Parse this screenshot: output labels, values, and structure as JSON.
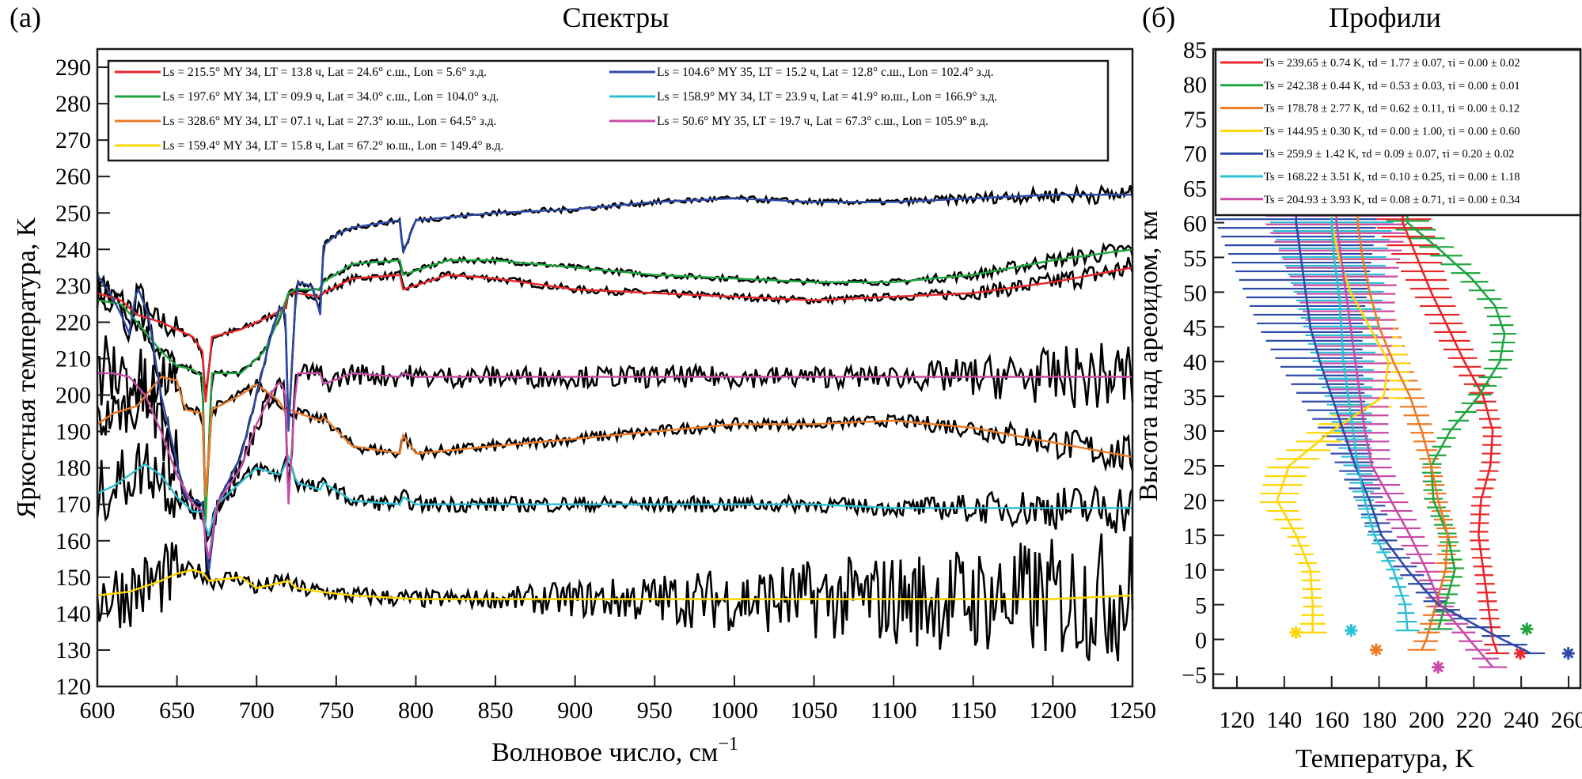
{
  "panels": {
    "a": {
      "letter": "(а)",
      "title": "Спектры"
    },
    "b": {
      "letter": "(б)",
      "title": "Профили"
    }
  },
  "chart_data": [
    {
      "id": "spectra",
      "type": "line",
      "title": "Спектры",
      "xlabel": "Волновое число, см",
      "xlabel_sup": "−1",
      "ylabel": "Яркостная температура, K",
      "xlim": [
        600,
        1250
      ],
      "ylim": [
        120,
        295
      ],
      "xticks": [
        600,
        650,
        700,
        750,
        800,
        850,
        900,
        950,
        1000,
        1050,
        1100,
        1150,
        1200,
        1250
      ],
      "yticks": [
        120,
        130,
        140,
        150,
        160,
        170,
        180,
        190,
        200,
        210,
        220,
        230,
        240,
        250,
        260,
        270,
        280,
        290
      ],
      "grid": false,
      "legend_position": "top",
      "observed_color": "#000000",
      "series": [
        {
          "name": "Ls = 215.5° MY 34, LT = 13.8 ч, Lat = 24.6° с.ш., Lon = 5.6° з.д.",
          "color": "#e8262a",
          "x": [
            600,
            615,
            625,
            640,
            650,
            660,
            666,
            668,
            672,
            690,
            710,
            718,
            720,
            725,
            740,
            742,
            760,
            790,
            792,
            820,
            850,
            900,
            950,
            1000,
            1050,
            1100,
            1150,
            1200,
            1250
          ],
          "y": [
            228,
            226,
            222,
            220,
            218,
            216,
            212,
            198,
            216,
            218,
            222,
            224,
            228,
            228,
            227,
            228,
            232,
            233,
            229,
            233,
            232,
            229,
            228,
            227,
            226,
            227,
            228,
            231,
            235
          ]
        },
        {
          "name": "Ls = 197.6° MY 34, LT = 09.9 ч, Lat = 34.0° с.ш., Lon = 104.0° з.д.",
          "color": "#1fa640",
          "x": [
            600,
            615,
            625,
            640,
            650,
            660,
            666,
            668,
            672,
            690,
            705,
            715,
            720,
            725,
            740,
            742,
            760,
            790,
            792,
            820,
            850,
            900,
            950,
            1000,
            1050,
            1100,
            1150,
            1200,
            1250
          ],
          "y": [
            226,
            225,
            220,
            212,
            208,
            207,
            205,
            165,
            206,
            206,
            212,
            222,
            228,
            229,
            229,
            231,
            236,
            237,
            233,
            237,
            237,
            235,
            233,
            232,
            231,
            231,
            233,
            237,
            240
          ]
        },
        {
          "name": "Ls = 328.6° MY 34, LT = 07.1 ч, Lat = 27.3° ю.ш., Lon = 64.5° з.д.",
          "color": "#ec7a25",
          "x": [
            600,
            610,
            625,
            640,
            650,
            655,
            666,
            668,
            672,
            690,
            700,
            715,
            718,
            720,
            740,
            742,
            760,
            790,
            792,
            800,
            850,
            900,
            950,
            1000,
            1050,
            1100,
            1150,
            1200,
            1250
          ],
          "y": [
            192,
            195,
            197,
            205,
            204,
            196,
            195,
            172,
            196,
            200,
            203,
            198,
            195,
            196,
            193,
            194,
            186,
            184,
            189,
            184,
            186,
            188,
            190,
            192,
            192,
            193,
            191,
            187,
            183
          ]
        },
        {
          "name": "Ls = 159.4° MY 34, LT = 15.8 ч, Lat = 67.2° ю.ш., Lon = 149.4° в.д.",
          "color": "#ffd600",
          "x": [
            600,
            620,
            640,
            650,
            660,
            667,
            670,
            690,
            700,
            720,
            725,
            740,
            760,
            800,
            850,
            900,
            950,
            1000,
            1050,
            1100,
            1150,
            1200,
            1250
          ],
          "y": [
            145,
            146,
            149,
            151,
            152,
            151,
            149,
            150,
            147,
            149,
            147,
            146,
            145,
            144,
            144,
            144,
            144,
            144,
            144,
            144,
            144,
            144,
            145
          ]
        },
        {
          "name": "Ls = 104.6° MY 35, LT = 15.2 ч, Lat = 12.8° с.ш., Lon = 102.4° з.д.",
          "color": "#2e4aa8",
          "x": [
            600,
            608,
            615,
            620,
            625,
            632,
            640,
            655,
            667,
            669,
            675,
            690,
            700,
            710,
            715,
            718,
            720,
            725,
            735,
            740,
            742,
            750,
            760,
            790,
            792,
            800,
            850,
            900,
            950,
            1000,
            1050,
            1100,
            1150,
            1200,
            1250
          ],
          "y": [
            233,
            228,
            222,
            217,
            230,
            222,
            200,
            172,
            170,
            148,
            170,
            183,
            200,
            218,
            225,
            222,
            190,
            231,
            230,
            222,
            241,
            244,
            246,
            248,
            239,
            248,
            250,
            251,
            253,
            254,
            253,
            253,
            254,
            255,
            255
          ]
        },
        {
          "name": "Ls = 158.9° MY 34, LT = 23.9 ч, Lat = 41.9° ю.ш., Lon = 166.9° з.д.",
          "color": "#2cc0d4",
          "x": [
            600,
            610,
            620,
            630,
            640,
            650,
            660,
            667,
            669,
            675,
            700,
            715,
            720,
            725,
            740,
            742,
            760,
            790,
            792,
            800,
            850,
            900,
            950,
            1000,
            1050,
            1100,
            1150,
            1200,
            1250
          ],
          "y": [
            173,
            175,
            178,
            181,
            178,
            172,
            168,
            168,
            160,
            170,
            180,
            178,
            183,
            176,
            174,
            176,
            171,
            170,
            172,
            170,
            170,
            170,
            170,
            170,
            170,
            169,
            169,
            169,
            169
          ]
        },
        {
          "name": "Ls = 50.6° MY 35, LT = 19.7 ч, Lat = 67.3° с.ш., Lon = 105.9° в.д.",
          "color": "#c94aa8",
          "x": [
            600,
            610,
            620,
            630,
            640,
            650,
            660,
            667,
            669,
            675,
            690,
            700,
            710,
            715,
            718,
            720,
            725,
            740,
            742,
            760,
            790,
            792,
            800,
            850,
            900,
            950,
            1000,
            1050,
            1100,
            1150,
            1200,
            1250
          ],
          "y": [
            206,
            206,
            205,
            200,
            190,
            178,
            170,
            168,
            152,
            170,
            180,
            192,
            201,
            204,
            200,
            170,
            206,
            206,
            203,
            206,
            205,
            206,
            205,
            205,
            205,
            205,
            205,
            205,
            205,
            205,
            205,
            205
          ]
        }
      ]
    },
    {
      "id": "profiles",
      "type": "line",
      "title": "Профили",
      "xlabel": "Температура, K",
      "ylabel": "Высота над ареоидом, км",
      "xlim": [
        110,
        265
      ],
      "ylim": [
        -7,
        85
      ],
      "xticks": [
        120,
        140,
        160,
        180,
        200,
        220,
        240,
        260
      ],
      "yticks": [
        -5,
        0,
        5,
        10,
        15,
        20,
        25,
        30,
        35,
        40,
        45,
        50,
        55,
        60,
        65,
        70,
        75,
        80,
        85
      ],
      "grid": false,
      "legend_position": "top",
      "error_bars": "horizontal",
      "surface_marker": "asterisk",
      "series": [
        {
          "name": "Ts = 239.65 ± 0.74 K, τd = 1.77 ± 0.07, τi = 0.00 ± 0.02",
          "color": "#e8262a",
          "Ts": 239.65,
          "surface_alt": -2,
          "alt": [
            -2,
            0,
            5,
            10,
            15,
            20,
            25,
            30,
            35,
            40,
            45,
            50,
            55,
            60
          ],
          "T": [
            230,
            228,
            226,
            224,
            222,
            223,
            227,
            228,
            224,
            216,
            209,
            202,
            196,
            190
          ],
          "err": [
            5,
            4,
            4,
            4,
            4,
            4,
            4,
            4,
            5,
            6,
            7,
            8,
            10,
            12
          ]
        },
        {
          "name": "Ts = 242.38 ± 0.44 K, τd = 0.53 ± 0.03, τi = 0.00 ± 0.01",
          "color": "#1fa640",
          "Ts": 242.38,
          "surface_alt": 1.5,
          "alt": [
            1.5,
            5,
            10,
            15,
            20,
            25,
            30,
            35,
            40,
            44,
            48,
            52,
            56,
            60
          ],
          "T": [
            205,
            208,
            212,
            209,
            203,
            202,
            210,
            222,
            231,
            233,
            229,
            219,
            206,
            192
          ],
          "err": [
            6,
            4,
            4,
            4,
            4,
            4,
            4,
            5,
            5,
            5,
            5,
            6,
            7,
            9
          ]
        },
        {
          "name": "Ts = 178.78 ± 2.77 K, τd = 0.62 ± 0.11, τi = 0.00 ± 0.12",
          "color": "#ec7a25",
          "Ts": 178.78,
          "surface_alt": -1.5,
          "alt": [
            -1.5,
            0,
            5,
            10,
            15,
            20,
            25,
            30,
            35,
            40,
            45,
            50,
            55,
            60
          ],
          "T": [
            198,
            200,
            204,
            208,
            209,
            205,
            202,
            198,
            193,
            186,
            180,
            176,
            173,
            171
          ],
          "err": [
            6,
            5,
            4,
            4,
            4,
            4,
            4,
            5,
            6,
            7,
            8,
            9,
            11,
            14
          ]
        },
        {
          "name": "Ts = 144.95 ± 0.30 K, τd = 0.00 ± 1.00, τi = 0.00 ± 0.60",
          "color": "#ffd600",
          "Ts": 144.95,
          "surface_alt": 1,
          "alt": [
            1,
            5,
            10,
            15,
            20,
            25,
            30,
            35,
            40,
            45,
            50,
            55,
            60
          ],
          "T": [
            152,
            152,
            151,
            145,
            137,
            142,
            160,
            182,
            184,
            176,
            168,
            163,
            160
          ],
          "err": [
            6,
            4,
            4,
            4,
            8,
            9,
            10,
            10,
            9,
            10,
            11,
            13,
            16
          ]
        },
        {
          "name": "Ts = 259.9 ± 1.42 K, τd = 0.09 ± 0.07, τi = 0.20 ± 0.02",
          "color": "#2e4aa8",
          "Ts": 259.9,
          "surface_alt": -2,
          "alt": [
            -2,
            0,
            5,
            10,
            15,
            20,
            25,
            30,
            35,
            40,
            45,
            50,
            55,
            60
          ],
          "T": [
            244,
            232,
            205,
            192,
            181,
            176,
            170,
            165,
            160,
            155,
            151,
            149,
            147,
            145
          ],
          "err": [
            6,
            6,
            5,
            5,
            5,
            6,
            8,
            10,
            14,
            18,
            22,
            26,
            30,
            34
          ]
        },
        {
          "name": "Ts = 168.22 ± 3.51 K, τd = 0.10 ± 0.25, τi = 0.00 ± 1.18",
          "color": "#2cc0d4",
          "Ts": 168.22,
          "surface_alt": 1.3,
          "alt": [
            1.3,
            5,
            10,
            15,
            20,
            25,
            30,
            35,
            40,
            45,
            50,
            55,
            60
          ],
          "T": [
            192,
            191,
            186,
            178,
            174,
            171,
            169,
            167,
            165,
            164,
            163,
            161,
            160
          ],
          "err": [
            5,
            3,
            3,
            3,
            4,
            6,
            8,
            10,
            13,
            16,
            19,
            22,
            26
          ]
        },
        {
          "name": "Ts = 204.93 ± 3.93 K, τd = 0.08 ± 0.71, τi = 0.00 ± 0.34",
          "color": "#c94aa8",
          "Ts": 204.93,
          "surface_alt": -4,
          "alt": [
            -4,
            0,
            5,
            10,
            15,
            20,
            25,
            30,
            35,
            40,
            45,
            50,
            55,
            60
          ],
          "T": [
            228,
            218,
            206,
            200,
            193,
            185,
            177,
            174,
            172,
            170,
            168,
            166,
            164,
            162
          ],
          "err": [
            6,
            5,
            5,
            5,
            6,
            7,
            8,
            10,
            12,
            15,
            18,
            21,
            25,
            30
          ]
        }
      ]
    }
  ]
}
